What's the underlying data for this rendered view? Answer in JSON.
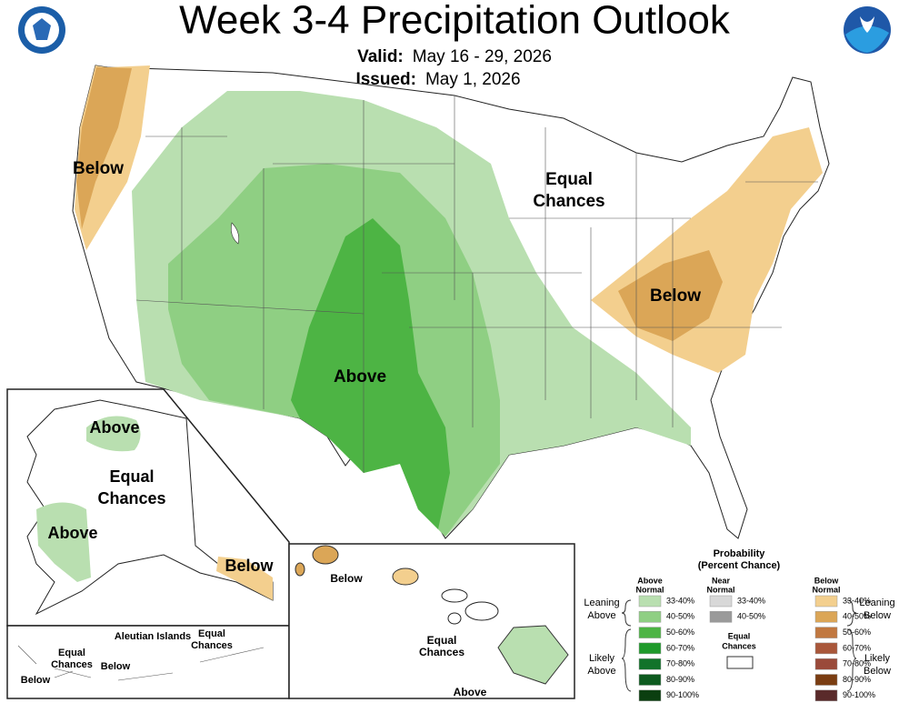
{
  "header": {
    "title": "Week 3-4 Precipitation Outlook",
    "valid_label": "Valid:",
    "valid": "May 16 - 29, 2026",
    "issued_label": "Issued:",
    "issued": "May 1, 2026"
  },
  "conus_labels": [
    [
      "Below"
    ],
    [
      "Equal",
      "Chances"
    ],
    [
      "Below"
    ],
    [
      "Above"
    ]
  ],
  "alaska_labels": [
    [
      "Above"
    ],
    [
      "Equal",
      "Chances"
    ],
    [
      "Above"
    ],
    [
      "Below"
    ]
  ],
  "aleutian_labels": [
    [
      "Aleutian Islands"
    ],
    [
      "Equal",
      "Chances"
    ],
    [
      "Equal",
      "Chances"
    ],
    [
      "Below"
    ],
    [
      "Below"
    ]
  ],
  "hawaii_labels": [
    [
      "Below"
    ],
    [
      "Equal",
      "Chances"
    ],
    [
      "Above"
    ]
  ],
  "legend": {
    "title": "Probability",
    "subtitle": "(Percent Chance)",
    "columns": [
      {
        "header": [
          "Above",
          "Normal"
        ],
        "items": [
          {
            "label": "33-40%",
            "color": "#b9dfb0"
          },
          {
            "label": "40-50%",
            "color": "#8fcf83"
          },
          {
            "label": "50-60%",
            "color": "#4db444"
          },
          {
            "label": "60-70%",
            "color": "#1e9a2a"
          },
          {
            "label": "70-80%",
            "color": "#12732a"
          },
          {
            "label": "80-90%",
            "color": "#0d5a1f"
          },
          {
            "label": "90-100%",
            "color": "#0b3f10"
          }
        ]
      },
      {
        "header": [
          "Near",
          "Normal"
        ],
        "items": [
          {
            "label": "33-40%",
            "color": "#d8d8d8"
          },
          {
            "label": "40-50%",
            "color": "#9a9a9a"
          }
        ]
      },
      {
        "header": [
          "Below",
          "Normal"
        ],
        "items": [
          {
            "label": "33-40%",
            "color": "#f3cf8e"
          },
          {
            "label": "40-50%",
            "color": "#dba657"
          },
          {
            "label": "50-60%",
            "color": "#c17840"
          },
          {
            "label": "60-70%",
            "color": "#a9573a"
          },
          {
            "label": "70-80%",
            "color": "#9a4a3a"
          },
          {
            "label": "80-90%",
            "color": "#7a3d12"
          },
          {
            "label": "90-100%",
            "color": "#5a2a2a"
          }
        ]
      }
    ],
    "equal_chances": [
      "Equal",
      "Chances"
    ],
    "groups": [
      [
        "Leaning",
        "Above"
      ],
      [
        "Likely",
        "Above"
      ],
      [
        "Leaning",
        "Below"
      ],
      [
        "Likely",
        "Below"
      ]
    ]
  }
}
